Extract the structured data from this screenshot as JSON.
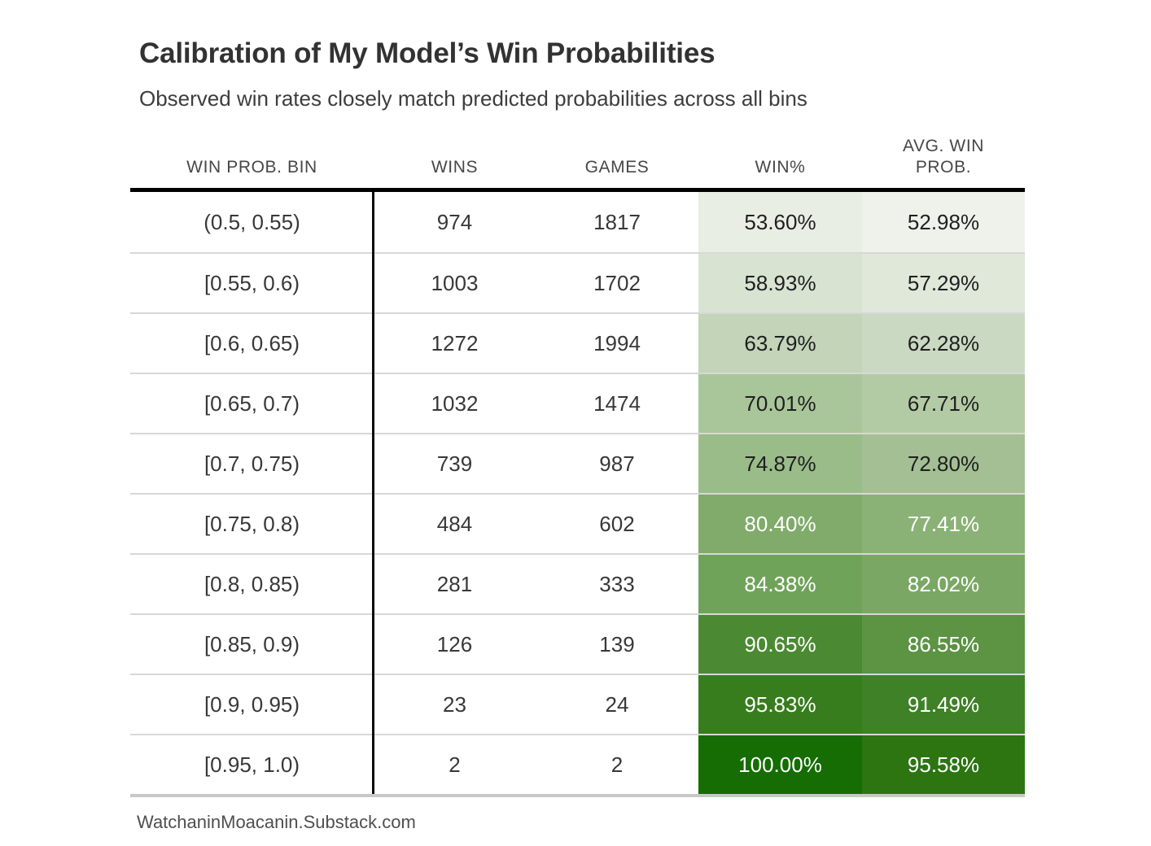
{
  "page": {
    "title": "Calibration of My Model’s Win Probabilities",
    "subtitle": "Observed win rates closely match predicted probabilities across all bins",
    "source": "WatchaninMoacanin.Substack.com"
  },
  "colors": {
    "header_rule": "#000000",
    "row_divider": "#d8d8d8",
    "bottom_rule": "#c8c8c8",
    "dark_value_text": "#1f1f1f",
    "light_value_text": "#ffffff"
  },
  "table": {
    "columns": {
      "bin": "WIN PROB. BIN",
      "wins": "WINS",
      "games": "GAMES",
      "win_pct": "WIN%",
      "avg_prob": "AVG. WIN PROB."
    },
    "rows": [
      {
        "bin": "(0.5, 0.55)",
        "wins": "974",
        "games": "1817",
        "win_pct": "53.60%",
        "avg_prob": "52.98%",
        "win_bg": "#e9eee5",
        "avg_bg": "#eef2eb",
        "fg": "#1f1f1f"
      },
      {
        "bin": "[0.55, 0.6)",
        "wins": "1003",
        "games": "1702",
        "win_pct": "58.93%",
        "avg_prob": "57.29%",
        "win_bg": "#d8e3d1",
        "avg_bg": "#dfe8d9",
        "fg": "#1f1f1f"
      },
      {
        "bin": "[0.6, 0.65)",
        "wins": "1272",
        "games": "1994",
        "win_pct": "63.79%",
        "avg_prob": "62.28%",
        "win_bg": "#c3d4b9",
        "avg_bg": "#cad9c1",
        "fg": "#1f1f1f"
      },
      {
        "bin": "[0.65, 0.7)",
        "wins": "1032",
        "games": "1474",
        "win_pct": "70.01%",
        "avg_prob": "67.71%",
        "win_bg": "#a9c69a",
        "avg_bg": "#b3cba5",
        "fg": "#1f1f1f"
      },
      {
        "bin": "[0.7, 0.75)",
        "wins": "739",
        "games": "987",
        "win_pct": "74.87%",
        "avg_prob": "72.80%",
        "win_bg": "#9abc89",
        "avg_bg": "#a3bf93",
        "fg": "#1f1f1f"
      },
      {
        "bin": "[0.75, 0.8)",
        "wins": "484",
        "games": "602",
        "win_pct": "80.40%",
        "avg_prob": "77.41%",
        "win_bg": "#80ab6a",
        "avg_bg": "#8bb276",
        "fg": "#ffffff"
      },
      {
        "bin": "[0.8, 0.85)",
        "wins": "281",
        "games": "333",
        "win_pct": "84.38%",
        "avg_prob": "82.02%",
        "win_bg": "#70a35a",
        "avg_bg": "#7aa864",
        "fg": "#ffffff"
      },
      {
        "bin": "[0.85, 0.9)",
        "wins": "126",
        "games": "139",
        "win_pct": "90.65%",
        "avg_prob": "86.55%",
        "win_bg": "#4b8a32",
        "avg_bg": "#5c9443",
        "fg": "#ffffff"
      },
      {
        "bin": "[0.9, 0.95)",
        "wins": "23",
        "games": "24",
        "win_pct": "95.83%",
        "avg_prob": "91.49%",
        "win_bg": "#377d1d",
        "avg_bg": "#3f8126",
        "fg": "#ffffff"
      },
      {
        "bin": "[0.95, 1.0)",
        "wins": "2",
        "games": "2",
        "win_pct": "100.00%",
        "avg_prob": "95.58%",
        "win_bg": "#156d03",
        "avg_bg": "#2c7511",
        "fg": "#ffffff"
      }
    ]
  },
  "chart_data": {
    "type": "table",
    "title": "Calibration of My Model’s Win Probabilities",
    "subtitle": "Observed win rates closely match predicted probabilities across all bins",
    "columns": [
      "WIN PROB. BIN",
      "WINS",
      "GAMES",
      "WIN%",
      "AVG. WIN PROB."
    ],
    "bins": [
      "(0.5, 0.55)",
      "[0.55, 0.6)",
      "[0.6, 0.65)",
      "[0.65, 0.7)",
      "[0.7, 0.75)",
      "[0.75, 0.8)",
      "[0.8, 0.85)",
      "[0.85, 0.9)",
      "[0.9, 0.95)",
      "[0.95, 1.0)"
    ],
    "wins": [
      974,
      1003,
      1272,
      1032,
      739,
      484,
      281,
      126,
      23,
      2
    ],
    "games": [
      1817,
      1702,
      1994,
      1474,
      987,
      602,
      333,
      139,
      24,
      2
    ],
    "win_pct": [
      53.6,
      58.93,
      63.79,
      70.01,
      74.87,
      80.4,
      84.38,
      90.65,
      95.83,
      100.0
    ],
    "avg_win_prob": [
      52.98,
      57.29,
      62.28,
      67.71,
      72.8,
      77.41,
      82.02,
      86.55,
      91.49,
      95.58
    ],
    "heatmap_columns": [
      "WIN%",
      "AVG. WIN PROB."
    ],
    "heatmap_scale": "white-to-dark-green, higher percentage = darker",
    "source": "WatchaninMoacanin.Substack.com"
  }
}
